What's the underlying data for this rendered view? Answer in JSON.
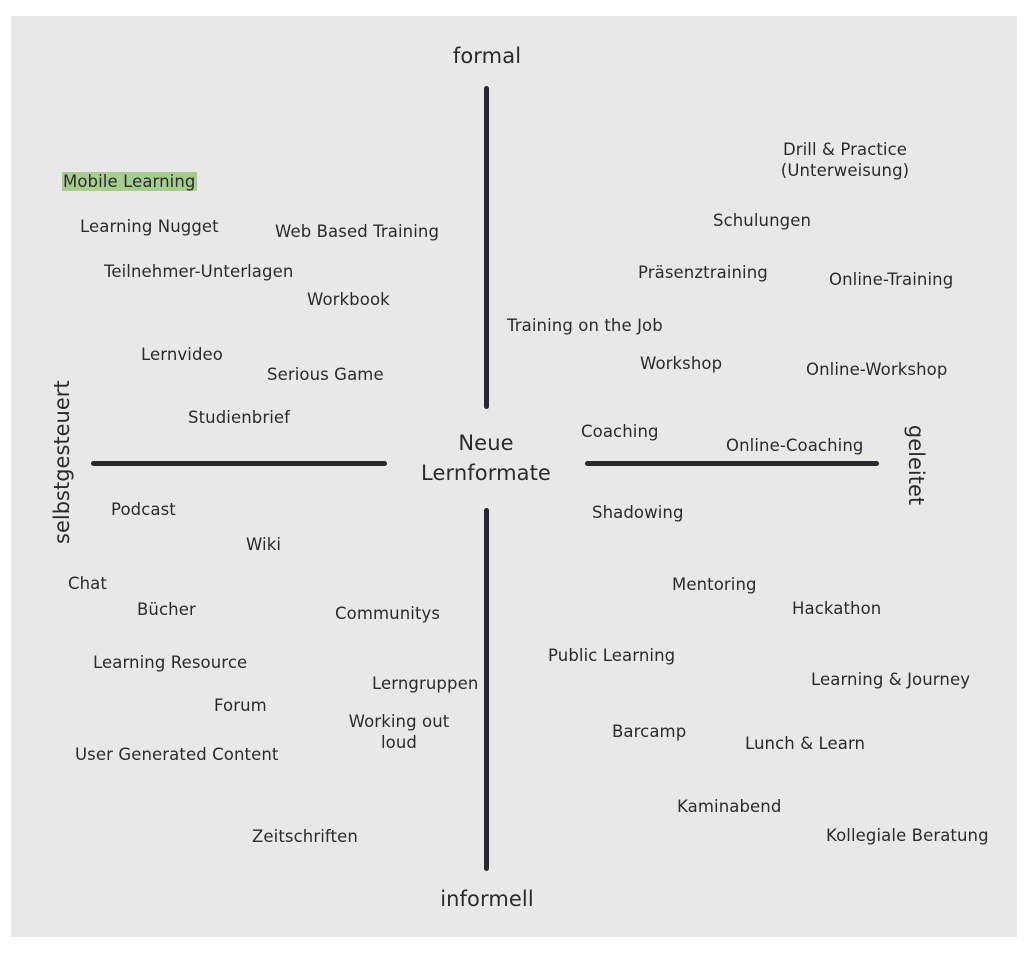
{
  "axes": {
    "top": "formal",
    "bottom": "informell",
    "left": "selbstgesteuert",
    "right": "geleitet",
    "center_line1": "Neue",
    "center_line2": "Lernformate"
  },
  "highlight": {
    "label": "Mobile Learning",
    "color": "#a6cc8f"
  },
  "top_left": [
    "Learning Nugget",
    "Web Based Training",
    "Teilnehmer-Unterlagen",
    "Workbook",
    "Lernvideo",
    "Serious Game",
    "Studienbrief"
  ],
  "top_right": {
    "drill_line1": "Drill & Practice",
    "drill_line2": "(Unterweisung)",
    "items": [
      "Schulungen",
      "Präsenztraining",
      "Online-Training",
      "Training on the Job",
      "Workshop",
      "Online-Workshop",
      "Coaching",
      "Online-Coaching"
    ]
  },
  "bottom_left": {
    "items": [
      "Podcast",
      "Wiki",
      "Chat",
      "Bücher",
      "Communitys",
      "Learning Resource",
      "Lerngruppen",
      "Forum",
      "User Generated Content",
      "Zeitschriften"
    ],
    "wol_line1": "Working out",
    "wol_line2": "loud"
  },
  "bottom_right": [
    "Shadowing",
    "Mentoring",
    "Hackathon",
    "Public Learning",
    "Learning & Journey",
    "Barcamp",
    "Lunch & Learn",
    "Kaminabend",
    "Kollegiale Beratung"
  ]
}
